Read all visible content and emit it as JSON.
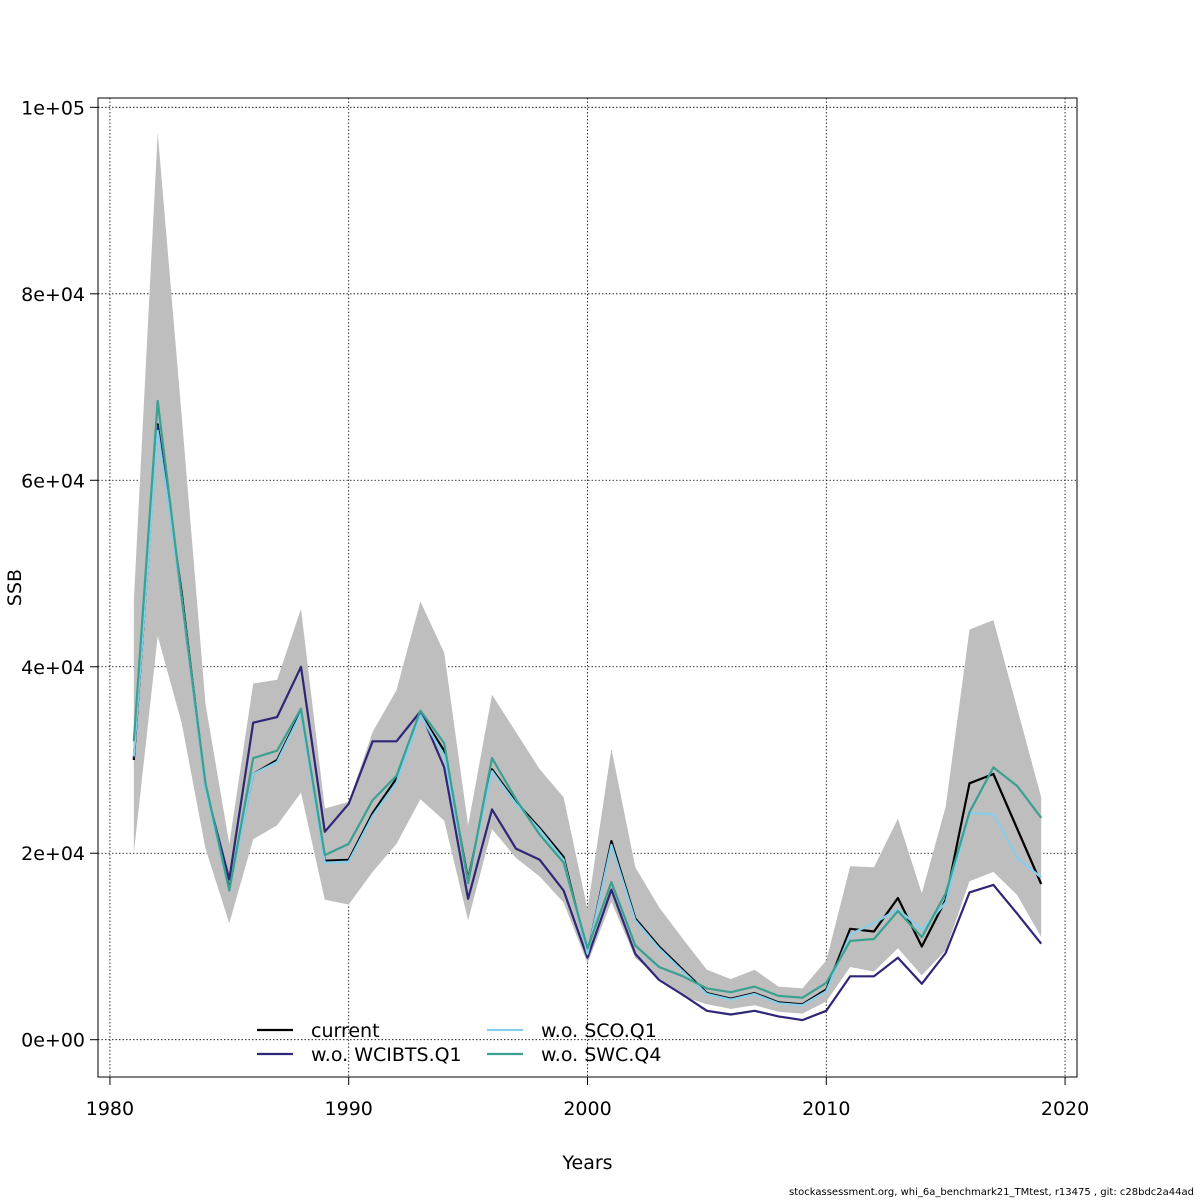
{
  "chart_data": {
    "type": "line",
    "xlabel": "Years",
    "ylabel": "SSB",
    "xlim": [
      1979.5,
      2020.5
    ],
    "ylim": [
      -4000,
      101000
    ],
    "x_ticks": [
      1980,
      1990,
      2000,
      2010,
      2020
    ],
    "y_ticks": [
      0,
      20000,
      40000,
      60000,
      80000,
      100000
    ],
    "y_tick_labels": [
      "0e+00",
      "2e+04",
      "4e+04",
      "6e+04",
      "8e+04",
      "1e+05"
    ],
    "grid": true,
    "legend_position": "bottom-left",
    "x": [
      1981,
      1982,
      1983,
      1984,
      1985,
      1986,
      1987,
      1988,
      1989,
      1990,
      1991,
      1992,
      1993,
      1994,
      1995,
      1996,
      1997,
      1998,
      1999,
      2000,
      2001,
      2002,
      2003,
      2004,
      2005,
      2006,
      2007,
      2008,
      2009,
      2010,
      2011,
      2012,
      2013,
      2014,
      2015,
      2016,
      2017,
      2018,
      2019
    ],
    "band": {
      "color": "#bebebe",
      "upper": [
        47000,
        97300,
        67000,
        36000,
        21000,
        38200,
        38600,
        46200,
        24800,
        25500,
        33000,
        37500,
        47000,
        41500,
        23000,
        37000,
        33000,
        29000,
        26000,
        14000,
        31200,
        18500,
        14200,
        10800,
        7500,
        6500,
        7500,
        5700,
        5500,
        8500,
        18600,
        18500,
        23700,
        15700,
        25000,
        44000,
        45000,
        35500,
        26000
      ],
      "lower": [
        20000,
        43300,
        34000,
        20500,
        12500,
        21500,
        23000,
        26500,
        15000,
        14500,
        18000,
        21000,
        25800,
        23500,
        12800,
        22600,
        19500,
        17500,
        14700,
        8200,
        14800,
        8800,
        6600,
        4600,
        3800,
        3300,
        3700,
        3000,
        2800,
        4100,
        7800,
        7300,
        9800,
        6900,
        9600,
        17000,
        18000,
        15500,
        11000
      ]
    },
    "series": [
      {
        "name": "current",
        "color": "#000000",
        "dash": "",
        "values": [
          30000,
          66000,
          48000,
          27000,
          16200,
          28500,
          30000,
          35200,
          19200,
          19300,
          24300,
          28000,
          35000,
          31000,
          17200,
          29000,
          25500,
          22700,
          19600,
          9200,
          21300,
          13000,
          10000,
          7500,
          5000,
          4400,
          5000,
          4000,
          3800,
          5400,
          11900,
          11600,
          15200,
          10000,
          15000,
          27500,
          28500,
          22600,
          16700
        ]
      },
      {
        "name": "w.o. WCIBTS.Q1",
        "color": "#2e2677",
        "dash": "",
        "values": [
          30200,
          65800,
          47500,
          27000,
          17200,
          34000,
          34600,
          40000,
          22300,
          25300,
          32000,
          32000,
          35200,
          29200,
          15100,
          24700,
          20500,
          19300,
          16000,
          8800,
          16100,
          9200,
          6400,
          4800,
          3100,
          2700,
          3100,
          2500,
          2100,
          3100,
          6800,
          6800,
          8800,
          6000,
          9300,
          15800,
          16600,
          13500,
          10300
        ]
      },
      {
        "name": "w.o. SCO.Q1",
        "color": "#87ceeb",
        "dash": "",
        "values": [
          30400,
          65300,
          47500,
          26800,
          16000,
          28500,
          29800,
          35000,
          19000,
          19100,
          24000,
          27600,
          34800,
          30500,
          17000,
          28800,
          25300,
          22500,
          19300,
          9200,
          20900,
          12800,
          9800,
          7300,
          4900,
          4300,
          4900,
          3900,
          3700,
          5200,
          11300,
          12500,
          14000,
          11800,
          14700,
          24300,
          24200,
          19500,
          17400
        ]
      },
      {
        "name": "w.o. SWC.Q4",
        "color": "#3aa08f",
        "dash": "",
        "values": [
          32000,
          68500,
          47500,
          27500,
          16000,
          30200,
          31000,
          35500,
          19800,
          21000,
          25700,
          28300,
          35300,
          31800,
          16800,
          30200,
          25800,
          22000,
          19000,
          9800,
          16900,
          10100,
          7800,
          6800,
          5500,
          5100,
          5700,
          4700,
          4500,
          6100,
          10600,
          10800,
          13800,
          11000,
          15700,
          24400,
          29200,
          27200,
          23800
        ]
      }
    ]
  },
  "footer": "stockassessment.org, whi_6a_benchmark21_TMtest, r13475 , git: c28bdc2a44ad"
}
